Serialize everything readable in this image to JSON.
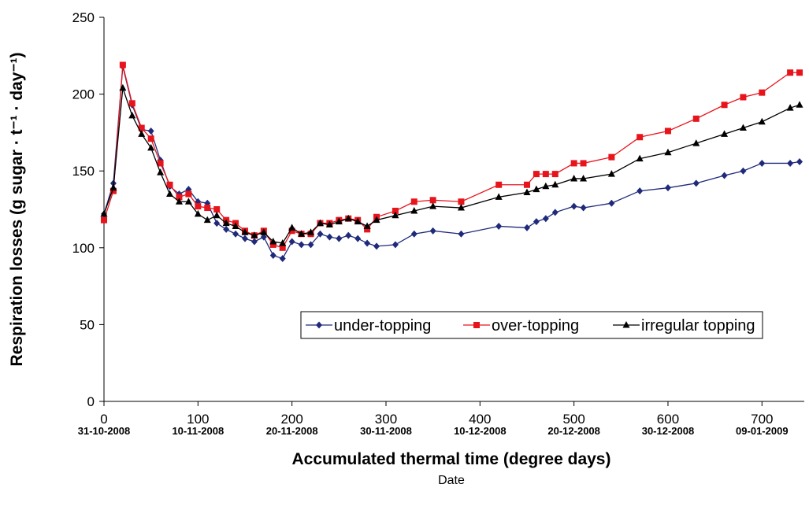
{
  "chart_data": {
    "type": "line",
    "ylabel": "Respiration losses (g sugar · t⁻¹ · day⁻¹)",
    "xlabel": "Accumulated thermal time (degree days)",
    "xlabel2": "Date",
    "x": [
      0,
      10,
      20,
      30,
      40,
      50,
      60,
      70,
      80,
      90,
      100,
      110,
      120,
      130,
      140,
      150,
      160,
      170,
      180,
      190,
      200,
      210,
      220,
      230,
      240,
      250,
      260,
      270,
      280,
      290,
      310,
      330,
      350,
      380,
      420,
      450,
      460,
      470,
      480,
      500,
      510,
      540,
      570,
      600,
      630,
      660,
      680,
      700,
      730,
      740
    ],
    "series": [
      {
        "name": "under-topping",
        "color": "#1f2a7a",
        "marker": "diamond",
        "values": [
          122,
          142,
          218,
          193,
          177,
          176,
          157,
          140,
          135,
          138,
          130,
          129,
          116,
          112,
          109,
          106,
          104,
          107,
          95,
          93,
          104,
          102,
          102,
          109,
          107,
          106,
          108,
          106,
          103,
          101,
          102,
          109,
          111,
          109,
          114,
          113,
          117,
          119,
          123,
          127,
          126,
          129,
          137,
          139,
          142,
          147,
          150,
          155,
          155,
          156
        ]
      },
      {
        "name": "over-topping",
        "color": "#e8141c",
        "marker": "square",
        "values": [
          118,
          137,
          219,
          194,
          178,
          171,
          155,
          141,
          133,
          135,
          127,
          126,
          125,
          118,
          116,
          111,
          108,
          111,
          102,
          100,
          111,
          109,
          109,
          116,
          116,
          118,
          119,
          118,
          112,
          120,
          124,
          130,
          131,
          130,
          141,
          141,
          148,
          148,
          148,
          155,
          155,
          159,
          172,
          176,
          184,
          193,
          198,
          201,
          214,
          214
        ]
      },
      {
        "name": "irregular topping",
        "color": "#000000",
        "marker": "triangle",
        "values": [
          122,
          139,
          204,
          186,
          174,
          165,
          149,
          135,
          130,
          130,
          122,
          118,
          121,
          116,
          114,
          110,
          108,
          110,
          104,
          103,
          113,
          109,
          110,
          116,
          115,
          117,
          119,
          117,
          114,
          118,
          121,
          124,
          127,
          126,
          133,
          136,
          138,
          140,
          141,
          145,
          145,
          148,
          158,
          162,
          168,
          174,
          178,
          182,
          191,
          193
        ]
      }
    ],
    "xlim": [
      0,
      745
    ],
    "xticks": [
      0,
      100,
      200,
      300,
      400,
      500,
      600,
      700
    ],
    "date_labels": [
      "31-10-2008",
      "10-11-2008",
      "20-11-2008",
      "30-11-2008",
      "10-12-2008",
      "20-12-2008",
      "30-12-2008",
      "09-01-2009"
    ],
    "ylim": [
      0,
      250
    ],
    "yticks": [
      0,
      50,
      100,
      150,
      200,
      250
    ],
    "grid": false,
    "legend": "center-right"
  }
}
